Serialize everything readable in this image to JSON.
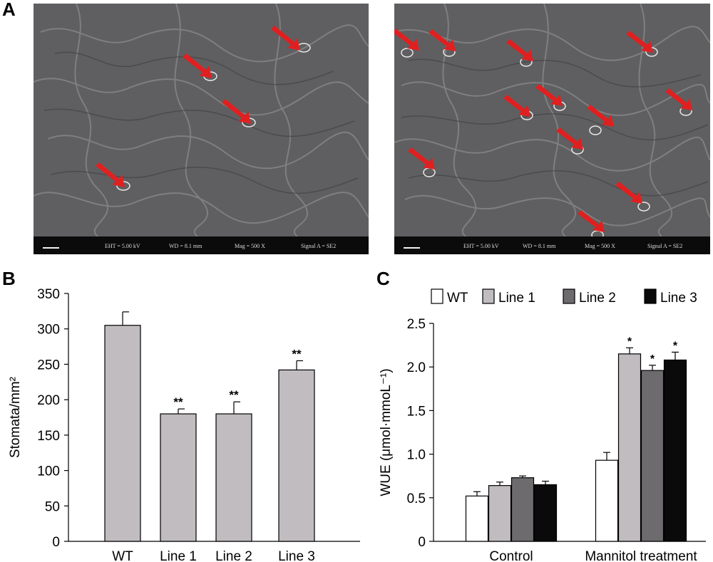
{
  "figure": {
    "panel_labels": {
      "a": "A",
      "b": "B",
      "c": "C"
    },
    "colors": {
      "arrow": "#e02020",
      "sem_bg": "#5f5f61",
      "info_bar": "#0b0b0b"
    }
  },
  "sem_images": [
    {
      "info": {
        "eht": "EHT = 5.00 kV",
        "wd": "WD = 8.1 mm",
        "mag": "Mag = 500 X",
        "signal": "Signal A = SE2"
      },
      "stomata_marked": 4
    },
    {
      "info": {
        "eht": "EHT = 5.00 kV",
        "wd": "WD = 8.1 mm",
        "mag": "Mag = 500 X",
        "signal": "Signal A = SE2"
      },
      "stomata_marked": 12
    }
  ],
  "chart_data": [
    {
      "type": "bar",
      "panel": "B",
      "categories": [
        "WT",
        "Line 1",
        "Line 2",
        "Line 3"
      ],
      "values": [
        305,
        180,
        180,
        242
      ],
      "errors": [
        19,
        7,
        17,
        13
      ],
      "significance": [
        "",
        "**",
        "**",
        "**"
      ],
      "ylabel": "Stomata/mm²",
      "ylim": [
        0,
        350
      ],
      "yticks": [
        "0",
        "50",
        "100",
        "150",
        "200",
        "250",
        "300",
        "350"
      ],
      "bar_color": "#c0bcc0",
      "legend": "none",
      "grid": false
    },
    {
      "type": "bar",
      "panel": "C",
      "categories": [
        "Control",
        "Mannitol treatment"
      ],
      "series": [
        {
          "name": "WT",
          "color": "#ffffff",
          "values": [
            0.52,
            0.93
          ],
          "errors": [
            0.05,
            0.09
          ],
          "significance": [
            "",
            ""
          ]
        },
        {
          "name": "Line 1",
          "color": "#c0bcc0",
          "values": [
            0.64,
            2.15
          ],
          "errors": [
            0.04,
            0.07
          ],
          "significance": [
            "",
            "*"
          ]
        },
        {
          "name": "Line 2",
          "color": "#6d6b6e",
          "values": [
            0.73,
            1.96
          ],
          "errors": [
            0.02,
            0.06
          ],
          "significance": [
            "",
            "*"
          ]
        },
        {
          "name": "Line 3",
          "color": "#0a0a0a",
          "values": [
            0.65,
            2.08
          ],
          "errors": [
            0.04,
            0.09
          ],
          "significance": [
            "",
            "*"
          ]
        }
      ],
      "ylabel": "WUE (μmol·mmoL⁻¹)",
      "ylim": [
        0,
        2.5
      ],
      "yticks": [
        "0",
        "0.5",
        "1.0",
        "1.5",
        "2.0",
        "2.5"
      ],
      "legend": "top",
      "grid": false
    }
  ]
}
